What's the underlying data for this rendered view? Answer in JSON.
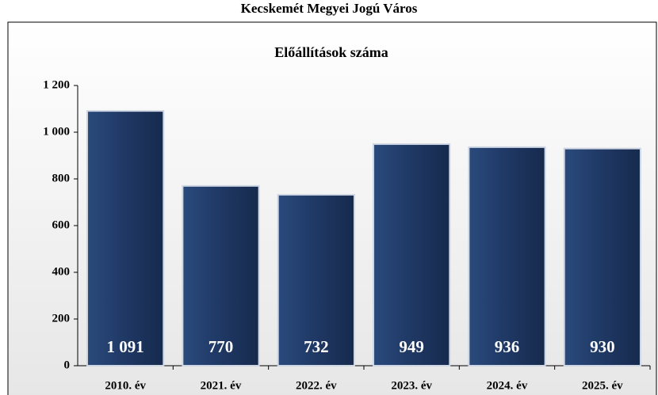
{
  "chart_data": {
    "type": "bar",
    "title": "Kecskemét Megyei Jogú Város",
    "subtitle": "Előállítások száma",
    "categories": [
      "2010. év",
      "2021. év",
      "2022. év",
      "2023. év",
      "2024. év",
      "2025. év"
    ],
    "values": [
      1091,
      770,
      732,
      949,
      936,
      930
    ],
    "value_labels": [
      "1 091",
      "770",
      "732",
      "949",
      "936",
      "930"
    ],
    "color": "#1f3864",
    "ylim": [
      0,
      1200
    ],
    "yticks": [
      0,
      200,
      400,
      600,
      800,
      {
        "value": 1000,
        "label": "1 000"
      },
      {
        "value": 1200,
        "label": "1 200"
      }
    ]
  }
}
